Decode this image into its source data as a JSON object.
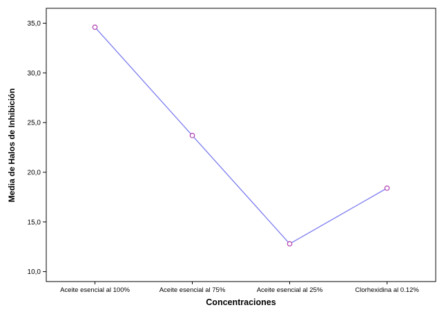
{
  "chart_data": {
    "type": "line",
    "title": "",
    "xlabel": "Concentraciones",
    "ylabel": "Media de Halos de Inhibición",
    "categories": [
      "Aceite esencial al 100%",
      "Aceite esencial al 75%",
      "Aceite esencial al 25%",
      "Clorhexidina al 0.12%"
    ],
    "values": [
      34.6,
      23.7,
      12.8,
      18.4
    ],
    "yticks": [
      "10,0",
      "15,0",
      "20,0",
      "25,0",
      "30,0",
      "35,0"
    ],
    "ylim": [
      9.0,
      36.5
    ],
    "grid": false,
    "legend": "none",
    "line_color": "#7b7bf0",
    "marker_color": "#b040b0"
  }
}
